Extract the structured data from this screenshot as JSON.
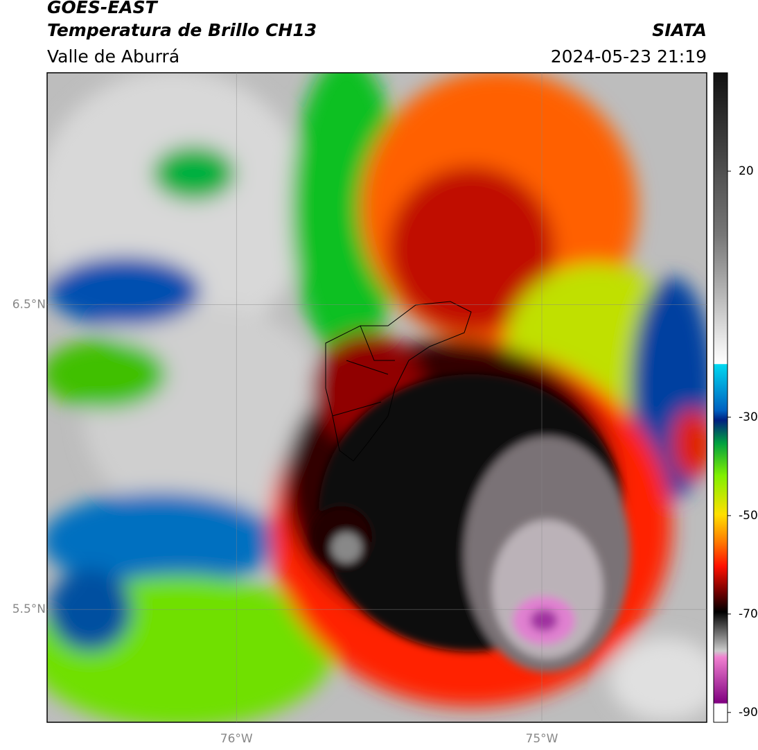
{
  "header": {
    "satellite": "GOES-EAST",
    "product": "Temperatura de Brillo CH13",
    "region": "Valle de Aburrá",
    "source": "SIATA",
    "datetime": "2024-05-23 21:19"
  },
  "map": {
    "lonlim": [
      -76.62,
      -74.46
    ],
    "latlim": [
      5.13,
      7.26
    ],
    "lon_ticks": [
      {
        "value": -76,
        "label": "76°W"
      },
      {
        "value": -75,
        "label": "75°W"
      }
    ],
    "lat_ticks": [
      {
        "value": 6.5,
        "label": "6.5°N"
      },
      {
        "value": 5.5,
        "label": "5.5°N"
      }
    ]
  },
  "colorbar": {
    "lim": [
      -92,
      40
    ],
    "ticks": [
      20,
      -30,
      -50,
      -70,
      -90
    ]
  }
}
